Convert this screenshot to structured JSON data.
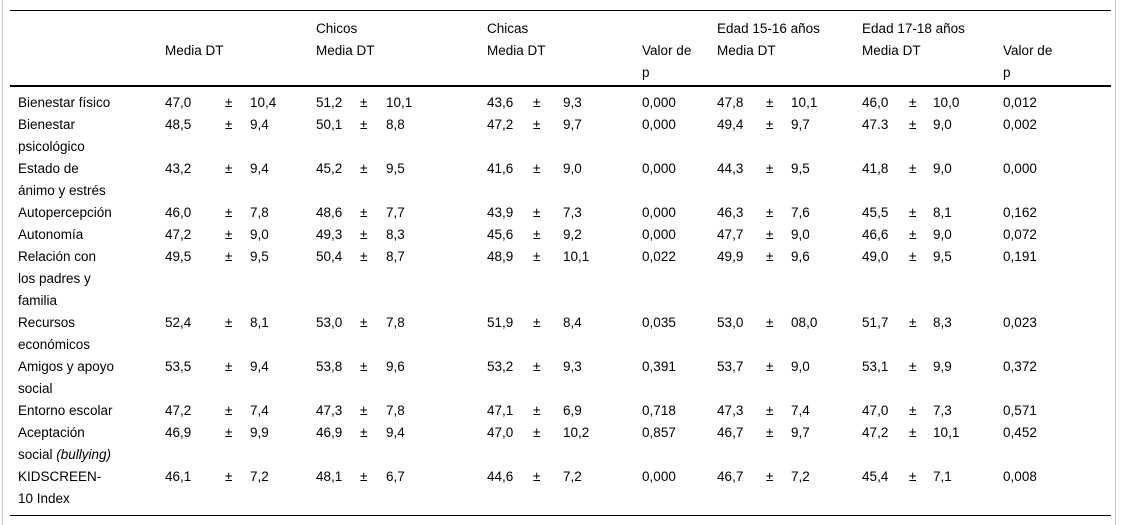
{
  "table": {
    "header": {
      "media_dt": "Media DT",
      "chicos": "Chicos",
      "chicas": "Chicas",
      "valor_de_p": "Valor de p",
      "edad_15_16": "Edad 15-16 años",
      "edad_17_18": "Edad 17-18 años"
    },
    "rows": [
      {
        "label_lines": [
          "Bienestar físico"
        ],
        "values": [
          "47,0",
          "±",
          "10,4",
          "51,2",
          "±",
          "10,1",
          "43,6",
          "±",
          "9,3",
          "0,000",
          "47,8",
          "±",
          "10,1",
          "46,0",
          "±",
          "10,0",
          "0,012"
        ]
      },
      {
        "label_lines": [
          "Bienestar",
          "psicológico"
        ],
        "values": [
          "48,5",
          "±",
          "9,4",
          "50,1",
          "±",
          "8,8",
          "47,2",
          "±",
          "9,7",
          "0,000",
          "49,4",
          "±",
          "9,7",
          "47.3",
          "±",
          "9,0",
          "0,002"
        ]
      },
      {
        "label_lines": [
          "Estado de",
          "ánimo y estrés"
        ],
        "values": [
          "43,2",
          "±",
          "9,4",
          "45,2",
          "±",
          "9,5",
          "41,6",
          "±",
          "9,0",
          "0,000",
          "44,3",
          "±",
          "9,5",
          "41,8",
          "±",
          "9,0",
          "0,000"
        ]
      },
      {
        "label_lines": [
          "Autopercepción"
        ],
        "values": [
          "46,0",
          "±",
          "7,8",
          "48,6",
          "±",
          "7,7",
          "43,9",
          "±",
          "7,3",
          "0,000",
          "46,3",
          "±",
          "7,6",
          "45,5",
          "±",
          "8,1",
          "0,162"
        ]
      },
      {
        "label_lines": [
          "Autonomía"
        ],
        "values": [
          "47,2",
          "±",
          "9,0",
          "49,3",
          "±",
          "8,3",
          "45,6",
          "±",
          "9,2",
          "0,000",
          "47,7",
          "±",
          "9,0",
          "46,6",
          "±",
          "9,0",
          "0,072"
        ]
      },
      {
        "label_lines": [
          "Relación con",
          "los padres y",
          "familia"
        ],
        "values": [
          "49,5",
          "±",
          "9,5",
          "50,4",
          "±",
          "8,7",
          "48,9",
          "±",
          "10,1",
          "0,022",
          "49,9",
          "±",
          "9,6",
          "49,0",
          "±",
          "9,5",
          "0,191"
        ]
      },
      {
        "label_lines": [
          "Recursos",
          "económicos"
        ],
        "values": [
          "52,4",
          "±",
          "8,1",
          "53,0",
          "±",
          "7,8",
          "51,9",
          "±",
          "8,4",
          "0,035",
          "53,0",
          "±",
          "08,0",
          "51,7",
          "±",
          "8,3",
          "0,023"
        ]
      },
      {
        "label_lines": [
          "Amigos y apoyo",
          "social"
        ],
        "values": [
          "53,5",
          "±",
          "9,4",
          "53,8",
          "±",
          "9,6",
          "53,2",
          "±",
          "9,3",
          "0,391",
          "53,7",
          "±",
          "9,0",
          "53,1",
          "±",
          "9,9",
          "0,372"
        ]
      },
      {
        "label_lines": [
          "Entorno escolar"
        ],
        "values": [
          "47,2",
          "±",
          "7,4",
          "47,3",
          "±",
          "7,8",
          "47,1",
          "±",
          "6,9",
          "0,718",
          "47,3",
          "±",
          "7,4",
          "47,0",
          "±",
          "7,3",
          "0,571"
        ]
      },
      {
        "label_lines": [
          "Aceptación",
          "social "
        ],
        "label_italic": "(bullying)",
        "values": [
          "46,9",
          "±",
          "9,9",
          "46,9",
          "±",
          "9,4",
          "47,0",
          "±",
          "10,2",
          "0,857",
          "46,7",
          "±",
          "9,7",
          "47,2",
          "±",
          "10,1",
          "0,452"
        ]
      },
      {
        "label_lines": [
          "KIDSCREEN-",
          "10 Index"
        ],
        "values": [
          "46,1",
          "±",
          "7,2",
          "48,1",
          "±",
          "6,7",
          "44,6",
          "±",
          "7,2",
          "0,000",
          "46,7",
          "±",
          "7,2",
          "45,4",
          "±",
          "7,1",
          "0,008"
        ]
      }
    ]
  }
}
